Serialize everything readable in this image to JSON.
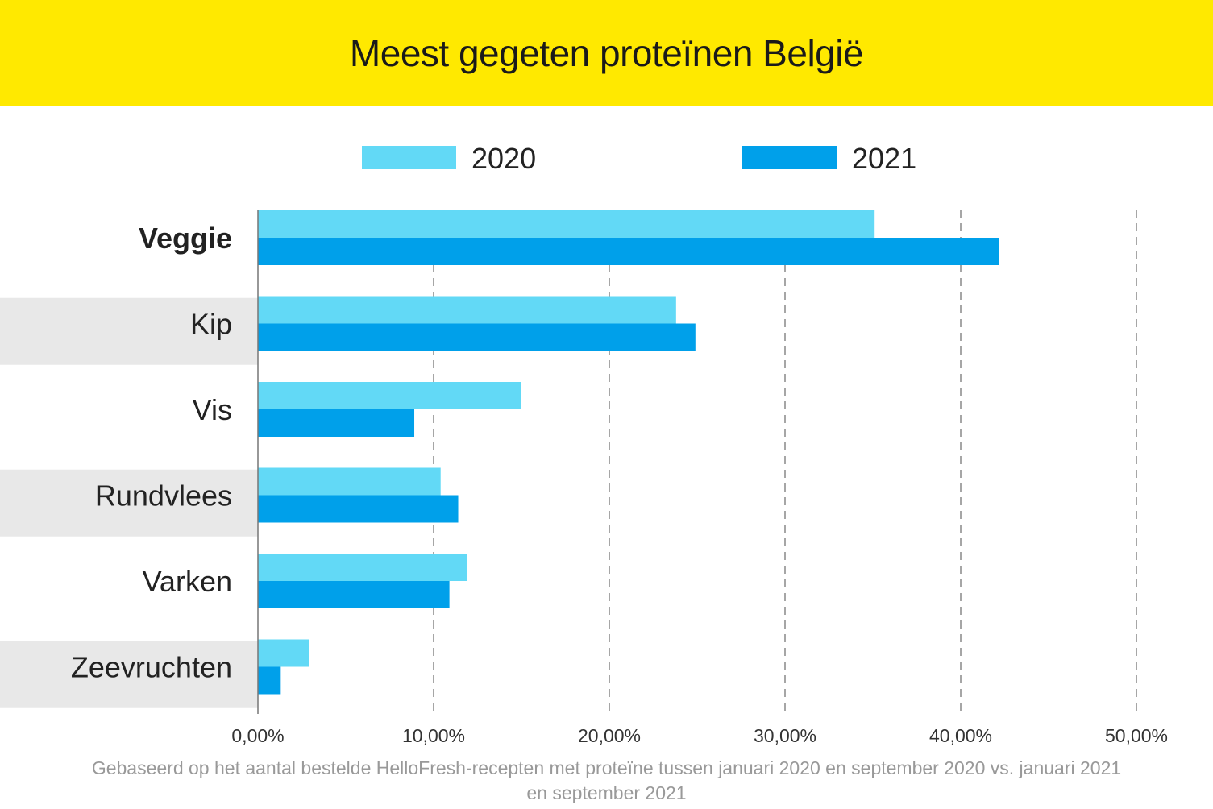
{
  "title": "Meest gegeten proteïnen België",
  "footer": {
    "line1": "Gebaseerd op het aantal bestelde HelloFresh-recepten met proteïne tussen januari 2020 en september 2020 vs. januari 2021",
    "line2": "en september 2021"
  },
  "chart_data": {
    "type": "bar",
    "orientation": "horizontal",
    "title": "Meest gegeten proteïnen België",
    "categories": [
      "Veggie",
      "Kip",
      "Vis",
      "Rundvlees",
      "Varken",
      "Zeevruchten"
    ],
    "series": [
      {
        "name": "2020",
        "color": "#62D9F6",
        "values": [
          35.1,
          23.8,
          15.0,
          10.4,
          11.9,
          2.9
        ]
      },
      {
        "name": "2021",
        "color": "#00A0EA",
        "values": [
          42.2,
          24.9,
          8.9,
          11.4,
          10.9,
          1.3
        ]
      }
    ],
    "xlim": [
      0,
      50
    ],
    "xticks": [
      "0,00%",
      "10,00%",
      "20,00%",
      "30,00%",
      "40,00%",
      "50,00%"
    ],
    "xtick_values": [
      0,
      10,
      20,
      30,
      40,
      50
    ],
    "grid": "vertical dashed",
    "legend": "top-center",
    "highlighted_category": "Veggie",
    "xlabel": "",
    "ylabel": ""
  }
}
